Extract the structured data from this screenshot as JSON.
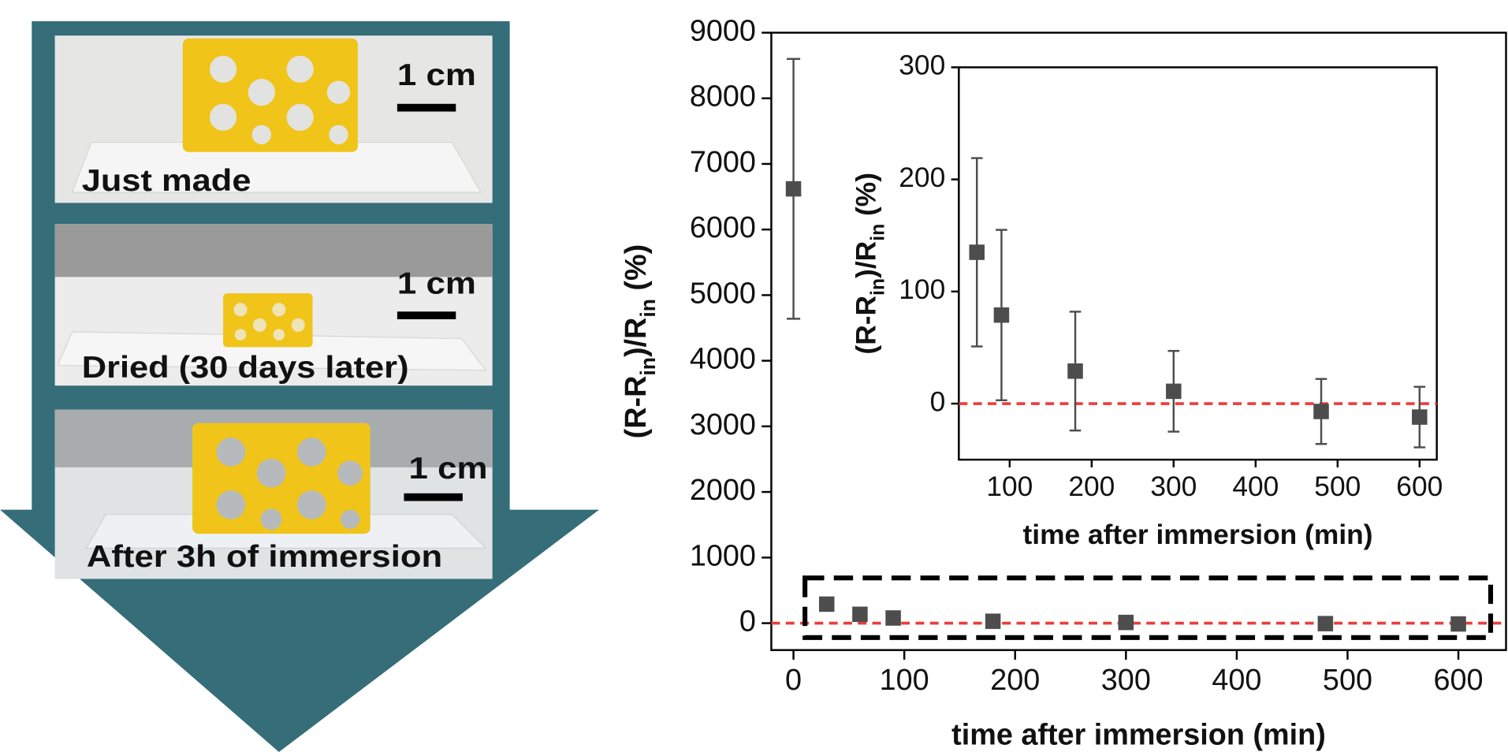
{
  "photos": [
    {
      "label": "Just made",
      "scale_bar": "1 cm"
    },
    {
      "label": "Dried (30 days later)",
      "scale_bar": "1 cm"
    },
    {
      "label": "After 3h of immersion",
      "scale_bar": "1 cm"
    }
  ],
  "chart_data": [
    {
      "type": "scatter",
      "xlabel": "time after immersion (min)",
      "ylabel": [
        {
          "text": "(R-R"
        },
        {
          "text": "in",
          "sub": true
        },
        {
          "text": ")/R"
        },
        {
          "text": "in",
          "sub": true
        },
        {
          "text": " (%)"
        }
      ],
      "x": [
        0,
        30,
        60,
        90,
        180,
        300,
        480,
        600
      ],
      "series": [
        {
          "color": "#4d4d4d",
          "values": [
            6620,
            290,
            135,
            79,
            29,
            11,
            -7,
            -12
          ],
          "errors": [
            1980,
            null,
            84,
            76,
            53,
            36,
            29,
            27
          ]
        }
      ],
      "xlim": [
        -20,
        643
      ],
      "ylim": [
        -410,
        9000
      ],
      "xticks": [
        0,
        100,
        200,
        300,
        400,
        500,
        600
      ],
      "yticks": [
        0,
        1000,
        2000,
        3000,
        4000,
        5000,
        6000,
        7000,
        8000,
        9000
      ],
      "hline": 0,
      "hline_color": "#ee3b3b"
    },
    {
      "type": "scatter",
      "xlabel": "time after immersion (min)",
      "ylabel": [
        {
          "text": "(R-R"
        },
        {
          "text": "in",
          "sub": true
        },
        {
          "text": ")/R"
        },
        {
          "text": "in",
          "sub": true
        },
        {
          "text": " (%)"
        }
      ],
      "x": [
        60,
        90,
        180,
        300,
        480,
        600
      ],
      "series": [
        {
          "color": "#4d4d4d",
          "values": [
            135,
            79,
            29,
            11,
            -7,
            -12
          ],
          "errors": [
            84,
            76,
            53,
            36,
            29,
            27
          ]
        }
      ],
      "xlim": [
        38,
        621
      ],
      "ylim": [
        -50,
        300
      ],
      "xticks": [
        100,
        200,
        300,
        400,
        500,
        600
      ],
      "yticks": [
        0,
        100,
        200,
        300
      ],
      "hline": 0,
      "hline_color": "#ee3b3b"
    }
  ]
}
